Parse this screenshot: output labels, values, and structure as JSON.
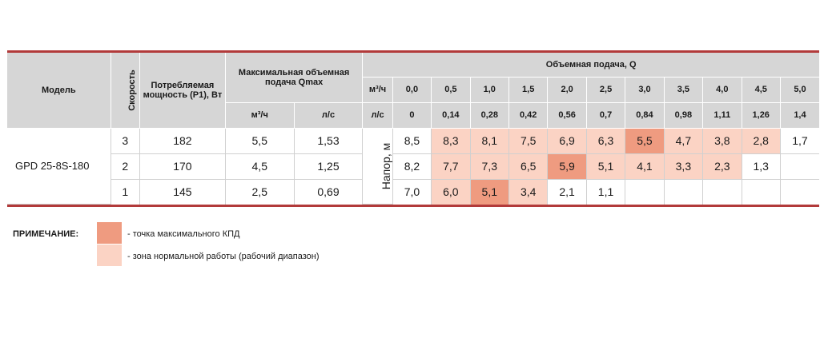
{
  "header": {
    "model": "Модель",
    "speed": "Скорость",
    "power": "Потребляемая мощность (P1), Вт",
    "qmax": "Максимальная объемная подача Qmax",
    "qmax_unit1": "м³/ч",
    "qmax_unit2": "л/с",
    "flow": "Объемная подача, Q",
    "flow_unit1": "м³/ч",
    "flow_unit2": "л/с",
    "flow_m3h": [
      "0,0",
      "0,5",
      "1,0",
      "1,5",
      "2,0",
      "2,5",
      "3,0",
      "3,5",
      "4,0",
      "4,5",
      "5,0"
    ],
    "flow_ls": [
      "0",
      "0,14",
      "0,28",
      "0,42",
      "0,56",
      "0,7",
      "0,84",
      "0,98",
      "1,11",
      "1,26",
      "1,4"
    ]
  },
  "model_name": "GPD 25-8S-180",
  "head_label": "Напор, м",
  "rows": [
    {
      "speed": "3",
      "power": "182",
      "qmax_m3h": "5,5",
      "qmax_ls": "1,53",
      "cells": [
        {
          "v": "8,5",
          "z": ""
        },
        {
          "v": "8,3",
          "z": "norm"
        },
        {
          "v": "8,1",
          "z": "norm"
        },
        {
          "v": "7,5",
          "z": "norm"
        },
        {
          "v": "6,9",
          "z": "norm"
        },
        {
          "v": "6,3",
          "z": "norm"
        },
        {
          "v": "5,5",
          "z": "max"
        },
        {
          "v": "4,7",
          "z": "norm"
        },
        {
          "v": "3,8",
          "z": "norm"
        },
        {
          "v": "2,8",
          "z": "norm"
        },
        {
          "v": "1,7",
          "z": ""
        }
      ]
    },
    {
      "speed": "2",
      "power": "170",
      "qmax_m3h": "4,5",
      "qmax_ls": "1,25",
      "cells": [
        {
          "v": "8,2",
          "z": ""
        },
        {
          "v": "7,7",
          "z": "norm"
        },
        {
          "v": "7,3",
          "z": "norm"
        },
        {
          "v": "6,5",
          "z": "norm"
        },
        {
          "v": "5,9",
          "z": "max"
        },
        {
          "v": "5,1",
          "z": "norm"
        },
        {
          "v": "4,1",
          "z": "norm"
        },
        {
          "v": "3,3",
          "z": "norm"
        },
        {
          "v": "2,3",
          "z": "norm"
        },
        {
          "v": "1,3",
          "z": ""
        },
        {
          "v": "",
          "z": ""
        }
      ]
    },
    {
      "speed": "1",
      "power": "145",
      "qmax_m3h": "2,5",
      "qmax_ls": "0,69",
      "cells": [
        {
          "v": "7,0",
          "z": ""
        },
        {
          "v": "6,0",
          "z": "norm"
        },
        {
          "v": "5,1",
          "z": "max"
        },
        {
          "v": "3,4",
          "z": "norm"
        },
        {
          "v": "2,1",
          "z": ""
        },
        {
          "v": "1,1",
          "z": ""
        },
        {
          "v": "",
          "z": ""
        },
        {
          "v": "",
          "z": ""
        },
        {
          "v": "",
          "z": ""
        },
        {
          "v": "",
          "z": ""
        },
        {
          "v": "",
          "z": ""
        }
      ]
    }
  ],
  "legend": {
    "title": "ПРИМЕЧАНИЕ:",
    "max": "- точка максимального КПД",
    "norm": "- зона нормальной работы (рабочий диапазон)"
  },
  "colors": {
    "max": "#ef9b80",
    "norm": "#fbd3c4",
    "accent_line": "#b23a3a",
    "header_bg": "#d6d6d6"
  }
}
